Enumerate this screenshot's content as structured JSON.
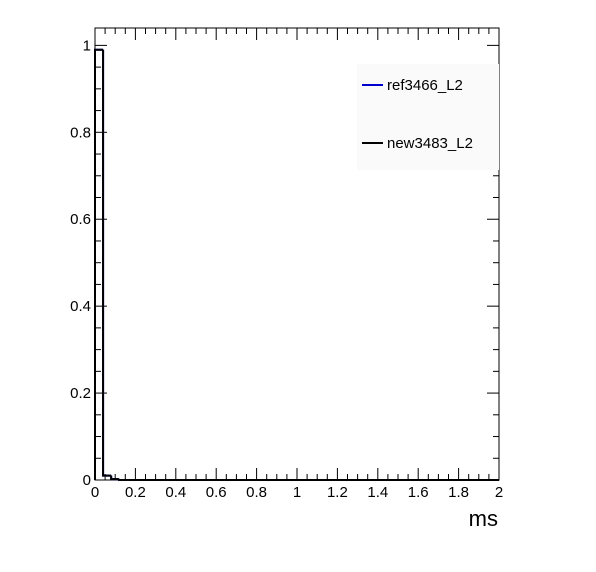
{
  "chart_data": {
    "type": "histogram",
    "x_label": "ms",
    "bins": [
      0,
      0.04,
      0.08,
      0.12,
      0.16,
      0.2,
      0.24,
      0.28,
      0.32,
      0.36,
      0.4,
      0.44,
      0.48,
      0.52,
      0.56,
      0.6,
      0.64,
      0.68,
      0.72,
      0.76,
      0.8,
      0.84,
      0.88,
      0.92,
      0.96,
      1,
      1.04,
      1.08,
      1.12,
      1.16,
      1.2,
      1.24,
      1.28,
      1.32,
      1.36,
      1.4,
      1.44,
      1.48,
      1.52,
      1.56,
      1.6,
      1.64,
      1.68,
      1.72,
      1.76,
      1.8,
      1.84,
      1.88,
      1.92,
      1.96,
      2
    ],
    "series": [
      {
        "name": "ref3466_L2",
        "color": "#0000cc",
        "values": [
          0.99,
          0.01,
          0.002,
          0,
          0,
          0,
          0,
          0,
          0,
          0,
          0,
          0,
          0,
          0,
          0,
          0,
          0,
          0,
          0,
          0,
          0,
          0,
          0,
          0,
          0,
          0,
          0,
          0,
          0,
          0,
          0,
          0,
          0,
          0,
          0,
          0,
          0,
          0,
          0,
          0,
          0,
          0,
          0,
          0,
          0,
          0,
          0,
          0,
          0,
          0
        ]
      },
      {
        "name": "new3483_L2",
        "color": "#000000",
        "values": [
          0.99,
          0.01,
          0.002,
          0,
          0,
          0,
          0,
          0,
          0,
          0,
          0,
          0,
          0,
          0,
          0,
          0,
          0,
          0,
          0,
          0,
          0,
          0,
          0,
          0,
          0,
          0,
          0,
          0,
          0,
          0,
          0,
          0,
          0,
          0,
          0,
          0,
          0,
          0,
          0,
          0,
          0,
          0,
          0,
          0,
          0,
          0,
          0,
          0,
          0,
          0
        ]
      }
    ],
    "xlim": [
      0,
      2
    ],
    "xticks": [
      0,
      0.2,
      0.4,
      0.6,
      0.8,
      1,
      1.2,
      1.4,
      1.6,
      1.8,
      2
    ],
    "ylim": [
      0,
      1.04
    ],
    "yticks": [
      0,
      0.2,
      0.4,
      0.6,
      0.8,
      1
    ],
    "legend": "top-right"
  }
}
